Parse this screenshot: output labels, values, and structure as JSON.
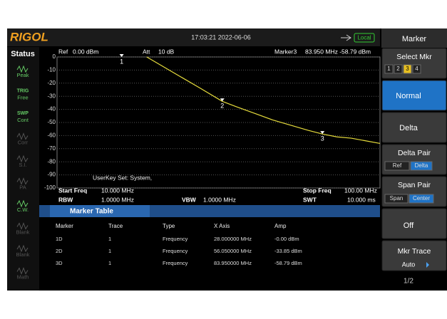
{
  "header": {
    "logo": "RIGOL",
    "datetime": "17:03:21 2022-06-06",
    "status": "Local"
  },
  "status_panel": {
    "title": "Status",
    "items": [
      {
        "text": "Peak"
      },
      {
        "top": "TRIG",
        "text": "Free"
      },
      {
        "top": "SWP",
        "text": "Cont"
      },
      {
        "text": "Corr"
      },
      {
        "text": "S.I."
      },
      {
        "text": "PA"
      },
      {
        "text": "C.W."
      },
      {
        "text": "Blank"
      },
      {
        "text": "Blank"
      },
      {
        "text": "Math"
      }
    ]
  },
  "info_top": [
    {
      "label": "Ref",
      "value": "0.00 dBm"
    },
    {
      "label": "Att",
      "value": "10 dB"
    },
    {
      "label": "Marker3",
      "value": "83.950 MHz   -58.79 dBm"
    }
  ],
  "chart": {
    "type": "line",
    "xlim": [
      10,
      100
    ],
    "ylim": [
      -100,
      0
    ],
    "yticks": [
      0,
      -10,
      -20,
      -30,
      -40,
      -50,
      -60,
      -70,
      -80,
      -90,
      -100
    ],
    "grid": true,
    "color": "#e6dc3c",
    "x": [
      35,
      40,
      45,
      50,
      56.05,
      60,
      65,
      70,
      75,
      80,
      83.95,
      88,
      92,
      96,
      100
    ],
    "values": [
      0,
      -8,
      -16,
      -24,
      -33.85,
      -38,
      -43,
      -48,
      -52,
      -56,
      -58.79,
      -61,
      -62,
      -64,
      -66
    ],
    "markers": [
      {
        "label": "1",
        "x": 28,
        "y": 0
      },
      {
        "label": "2",
        "x": 56.05,
        "y": -33.85
      },
      {
        "label": "3",
        "x": 83.95,
        "y": -58.79
      }
    ]
  },
  "userkey": "UserKey Set:  System,",
  "info_bottom": [
    {
      "label": "Start Freq",
      "value": "10.000 MHz"
    },
    {
      "label": "RBW",
      "value": "1.0000 MHz"
    },
    {
      "label": "VBW",
      "value": "1.0000 MHz"
    },
    {
      "label": "Stop Freq",
      "value": "100.00 MHz"
    },
    {
      "label": "SWT",
      "value": "10.000 ms"
    }
  ],
  "marker_table": {
    "title": "Marker Table",
    "columns": [
      "Marker",
      "Trace",
      "Type",
      "X Axis",
      "Amp"
    ],
    "rows": [
      [
        "1D",
        "1",
        "Frequency",
        "28.000000 MHz",
        "-0.00 dBm"
      ],
      [
        "2D",
        "1",
        "Frequency",
        "56.050000 MHz",
        "-33.85 dBm"
      ],
      [
        "3D",
        "1",
        "Frequency",
        "83.950000 MHz",
        "-58.79 dBm"
      ]
    ]
  },
  "menu": {
    "title": "Marker",
    "select": {
      "label": "Select Mkr",
      "options": [
        "1",
        "2",
        "3",
        "4"
      ],
      "active": 2
    },
    "normal": "Normal",
    "delta": "Delta",
    "delta_pair": {
      "label": "Delta Pair",
      "options": [
        "Ref",
        "Delta"
      ],
      "active": 1
    },
    "span_pair": {
      "label": "Span Pair",
      "options": [
        "Span",
        "Center"
      ],
      "active": 1
    },
    "off": "Off",
    "mkr_trace": {
      "label": "Mkr Trace",
      "value": "Auto"
    },
    "page": "1/2"
  }
}
